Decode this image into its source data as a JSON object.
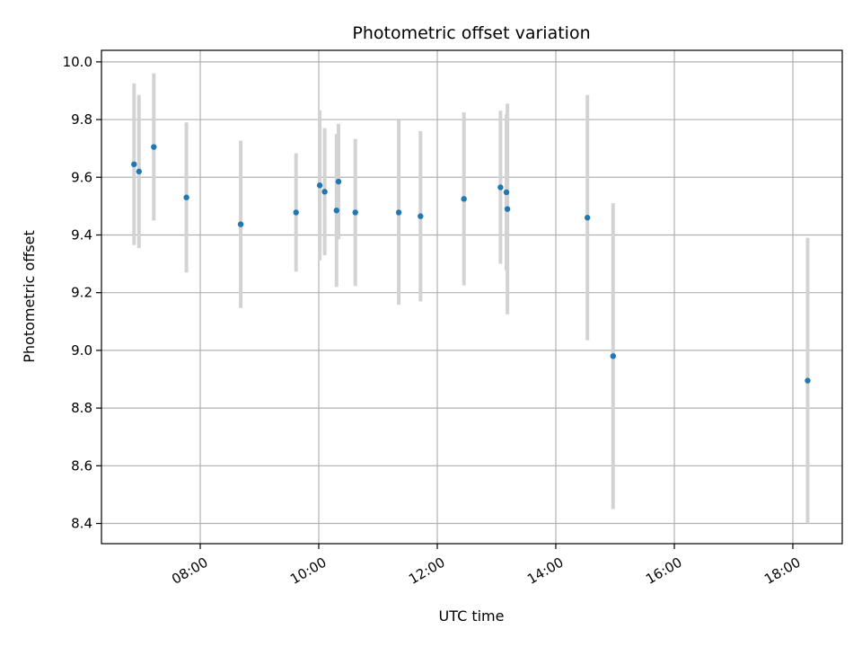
{
  "chart_data": {
    "type": "scatter",
    "title": "Photometric offset variation",
    "xlabel": "UTC time",
    "ylabel": "Photometric offset",
    "xlim": [
      "06:20",
      "18:50"
    ],
    "ylim": [
      8.33,
      10.04
    ],
    "grid": true,
    "x_ticks": [
      "08:00",
      "10:00",
      "12:00",
      "14:00",
      "16:00",
      "18:00"
    ],
    "y_ticks": [
      8.4,
      8.6,
      8.8,
      9.0,
      9.2,
      9.4,
      9.6,
      9.8,
      10.0
    ],
    "y_tick_labels": [
      "8.4",
      "8.6",
      "8.8",
      "9.0",
      "9.2",
      "9.4",
      "9.6",
      "9.8",
      "10.0"
    ],
    "marker_color": "#1f77b4",
    "errorbar_color": "#d3d3d3",
    "points": [
      {
        "time": "06:53",
        "y": 9.645,
        "err": 0.28
      },
      {
        "time": "06:58",
        "y": 9.62,
        "err": 0.265
      },
      {
        "time": "07:13",
        "y": 9.705,
        "err": 0.255
      },
      {
        "time": "07:46",
        "y": 9.53,
        "err": 0.26
      },
      {
        "time": "08:41",
        "y": 9.437,
        "err": 0.29
      },
      {
        "time": "09:37",
        "y": 9.478,
        "err": 0.205
      },
      {
        "time": "10:01",
        "y": 9.572,
        "err": 0.26
      },
      {
        "time": "10:06",
        "y": 9.55,
        "err": 0.22
      },
      {
        "time": "10:18",
        "y": 9.485,
        "err": 0.265
      },
      {
        "time": "10:20",
        "y": 9.585,
        "err": 0.2
      },
      {
        "time": "10:37",
        "y": 9.478,
        "err": 0.255
      },
      {
        "time": "11:21",
        "y": 9.478,
        "err": 0.32
      },
      {
        "time": "11:43",
        "y": 9.465,
        "err": 0.295
      },
      {
        "time": "12:27",
        "y": 9.525,
        "err": 0.3
      },
      {
        "time": "13:04",
        "y": 9.565,
        "err": 0.265
      },
      {
        "time": "13:10",
        "y": 9.548,
        "err": 0.27
      },
      {
        "time": "13:11",
        "y": 9.49,
        "err": 0.365
      },
      {
        "time": "14:32",
        "y": 9.46,
        "err": 0.425
      },
      {
        "time": "14:58",
        "y": 8.98,
        "err": 0.53
      },
      {
        "time": "18:15",
        "y": 8.895,
        "err": 0.495
      }
    ]
  }
}
